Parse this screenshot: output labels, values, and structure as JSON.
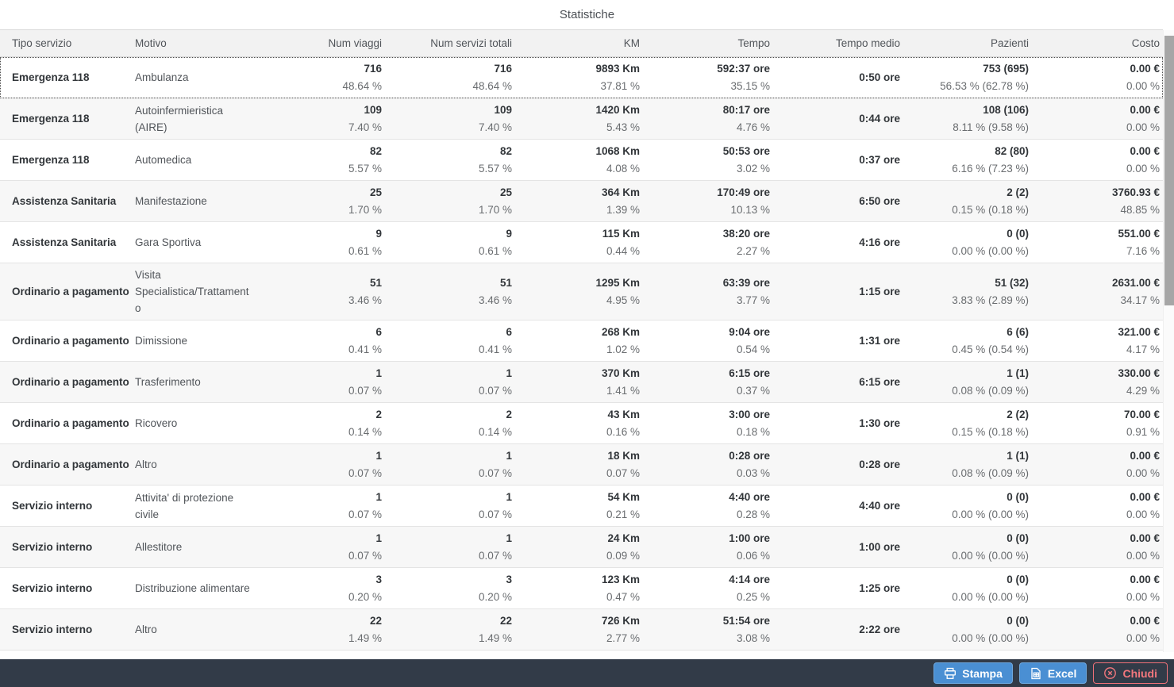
{
  "title": "Statistiche",
  "table": {
    "columns": [
      {
        "key": "tipo",
        "label": "Tipo servizio",
        "align": "left",
        "type": "tipo"
      },
      {
        "key": "motivo",
        "label": "Motivo",
        "align": "left",
        "type": "motivo"
      },
      {
        "key": "viaggi",
        "label": "Num viaggi",
        "align": "right",
        "type": "pair"
      },
      {
        "key": "servizi",
        "label": "Num servizi totali",
        "align": "right",
        "type": "pair"
      },
      {
        "key": "km",
        "label": "KM",
        "align": "right",
        "type": "pair"
      },
      {
        "key": "tempo",
        "label": "Tempo",
        "align": "right",
        "type": "pair"
      },
      {
        "key": "tempo_medio",
        "label": "Tempo medio",
        "align": "right",
        "type": "single"
      },
      {
        "key": "pazienti",
        "label": "Pazienti",
        "align": "right",
        "type": "pair"
      },
      {
        "key": "costo",
        "label": "Costo",
        "align": "right",
        "type": "pair"
      }
    ],
    "rows": [
      {
        "selected": true,
        "tipo": "Emergenza 118",
        "motivo": "Ambulanza",
        "viaggi": {
          "value": "716",
          "pct": "48.64 %"
        },
        "servizi": {
          "value": "716",
          "pct": "48.64 %"
        },
        "km": {
          "value": "9893 Km",
          "pct": "37.81 %"
        },
        "tempo": {
          "value": "592:37 ore",
          "pct": "35.15 %"
        },
        "tempo_medio": "0:50 ore",
        "pazienti": {
          "value": "753 (695)",
          "pct": "56.53 % (62.78 %)"
        },
        "costo": {
          "value": "0.00 €",
          "pct": "0.00 %"
        }
      },
      {
        "tipo": "Emergenza 118",
        "motivo": "Autoinfermieristica (AIRE)",
        "viaggi": {
          "value": "109",
          "pct": "7.40 %"
        },
        "servizi": {
          "value": "109",
          "pct": "7.40 %"
        },
        "km": {
          "value": "1420 Km",
          "pct": "5.43 %"
        },
        "tempo": {
          "value": "80:17 ore",
          "pct": "4.76 %"
        },
        "tempo_medio": "0:44 ore",
        "pazienti": {
          "value": "108 (106)",
          "pct": "8.11 % (9.58 %)"
        },
        "costo": {
          "value": "0.00 €",
          "pct": "0.00 %"
        }
      },
      {
        "tipo": "Emergenza 118",
        "motivo": "Automedica",
        "viaggi": {
          "value": "82",
          "pct": "5.57 %"
        },
        "servizi": {
          "value": "82",
          "pct": "5.57 %"
        },
        "km": {
          "value": "1068 Km",
          "pct": "4.08 %"
        },
        "tempo": {
          "value": "50:53 ore",
          "pct": "3.02 %"
        },
        "tempo_medio": "0:37 ore",
        "pazienti": {
          "value": "82 (80)",
          "pct": "6.16 % (7.23 %)"
        },
        "costo": {
          "value": "0.00 €",
          "pct": "0.00 %"
        }
      },
      {
        "tipo": "Assistenza Sanitaria",
        "motivo": "Manifestazione",
        "viaggi": {
          "value": "25",
          "pct": "1.70 %"
        },
        "servizi": {
          "value": "25",
          "pct": "1.70 %"
        },
        "km": {
          "value": "364 Km",
          "pct": "1.39 %"
        },
        "tempo": {
          "value": "170:49 ore",
          "pct": "10.13 %"
        },
        "tempo_medio": "6:50 ore",
        "pazienti": {
          "value": "2 (2)",
          "pct": "0.15 % (0.18 %)"
        },
        "costo": {
          "value": "3760.93 €",
          "pct": "48.85 %"
        }
      },
      {
        "tipo": "Assistenza Sanitaria",
        "motivo": "Gara Sportiva",
        "viaggi": {
          "value": "9",
          "pct": "0.61 %"
        },
        "servizi": {
          "value": "9",
          "pct": "0.61 %"
        },
        "km": {
          "value": "115 Km",
          "pct": "0.44 %"
        },
        "tempo": {
          "value": "38:20 ore",
          "pct": "2.27 %"
        },
        "tempo_medio": "4:16 ore",
        "pazienti": {
          "value": "0 (0)",
          "pct": "0.00 % (0.00 %)"
        },
        "costo": {
          "value": "551.00 €",
          "pct": "7.16 %"
        }
      },
      {
        "tipo": "Ordinario a pagamento",
        "motivo": "Visita Specialistica/Trattamento",
        "viaggi": {
          "value": "51",
          "pct": "3.46 %"
        },
        "servizi": {
          "value": "51",
          "pct": "3.46 %"
        },
        "km": {
          "value": "1295 Km",
          "pct": "4.95 %"
        },
        "tempo": {
          "value": "63:39 ore",
          "pct": "3.77 %"
        },
        "tempo_medio": "1:15 ore",
        "pazienti": {
          "value": "51 (32)",
          "pct": "3.83 % (2.89 %)"
        },
        "costo": {
          "value": "2631.00 €",
          "pct": "34.17 %"
        }
      },
      {
        "tipo": "Ordinario a pagamento",
        "motivo": "Dimissione",
        "viaggi": {
          "value": "6",
          "pct": "0.41 %"
        },
        "servizi": {
          "value": "6",
          "pct": "0.41 %"
        },
        "km": {
          "value": "268 Km",
          "pct": "1.02 %"
        },
        "tempo": {
          "value": "9:04 ore",
          "pct": "0.54 %"
        },
        "tempo_medio": "1:31 ore",
        "pazienti": {
          "value": "6 (6)",
          "pct": "0.45 % (0.54 %)"
        },
        "costo": {
          "value": "321.00 €",
          "pct": "4.17 %"
        }
      },
      {
        "tipo": "Ordinario a pagamento",
        "motivo": "Trasferimento",
        "viaggi": {
          "value": "1",
          "pct": "0.07 %"
        },
        "servizi": {
          "value": "1",
          "pct": "0.07 %"
        },
        "km": {
          "value": "370 Km",
          "pct": "1.41 %"
        },
        "tempo": {
          "value": "6:15 ore",
          "pct": "0.37 %"
        },
        "tempo_medio": "6:15 ore",
        "pazienti": {
          "value": "1 (1)",
          "pct": "0.08 % (0.09 %)"
        },
        "costo": {
          "value": "330.00 €",
          "pct": "4.29 %"
        }
      },
      {
        "tipo": "Ordinario a pagamento",
        "motivo": "Ricovero",
        "viaggi": {
          "value": "2",
          "pct": "0.14 %"
        },
        "servizi": {
          "value": "2",
          "pct": "0.14 %"
        },
        "km": {
          "value": "43 Km",
          "pct": "0.16 %"
        },
        "tempo": {
          "value": "3:00 ore",
          "pct": "0.18 %"
        },
        "tempo_medio": "1:30 ore",
        "pazienti": {
          "value": "2 (2)",
          "pct": "0.15 % (0.18 %)"
        },
        "costo": {
          "value": "70.00 €",
          "pct": "0.91 %"
        }
      },
      {
        "tipo": "Ordinario a pagamento",
        "motivo": "Altro",
        "viaggi": {
          "value": "1",
          "pct": "0.07 %"
        },
        "servizi": {
          "value": "1",
          "pct": "0.07 %"
        },
        "km": {
          "value": "18 Km",
          "pct": "0.07 %"
        },
        "tempo": {
          "value": "0:28 ore",
          "pct": "0.03 %"
        },
        "tempo_medio": "0:28 ore",
        "pazienti": {
          "value": "1 (1)",
          "pct": "0.08 % (0.09 %)"
        },
        "costo": {
          "value": "0.00 €",
          "pct": "0.00 %"
        }
      },
      {
        "tipo": "Servizio interno",
        "motivo": "Attivita' di protezione civile",
        "viaggi": {
          "value": "1",
          "pct": "0.07 %"
        },
        "servizi": {
          "value": "1",
          "pct": "0.07 %"
        },
        "km": {
          "value": "54 Km",
          "pct": "0.21 %"
        },
        "tempo": {
          "value": "4:40 ore",
          "pct": "0.28 %"
        },
        "tempo_medio": "4:40 ore",
        "pazienti": {
          "value": "0 (0)",
          "pct": "0.00 % (0.00 %)"
        },
        "costo": {
          "value": "0.00 €",
          "pct": "0.00 %"
        }
      },
      {
        "tipo": "Servizio interno",
        "motivo": "Allestitore",
        "viaggi": {
          "value": "1",
          "pct": "0.07 %"
        },
        "servizi": {
          "value": "1",
          "pct": "0.07 %"
        },
        "km": {
          "value": "24 Km",
          "pct": "0.09 %"
        },
        "tempo": {
          "value": "1:00 ore",
          "pct": "0.06 %"
        },
        "tempo_medio": "1:00 ore",
        "pazienti": {
          "value": "0 (0)",
          "pct": "0.00 % (0.00 %)"
        },
        "costo": {
          "value": "0.00 €",
          "pct": "0.00 %"
        }
      },
      {
        "tipo": "Servizio interno",
        "motivo": "Distribuzione alimentare",
        "viaggi": {
          "value": "3",
          "pct": "0.20 %"
        },
        "servizi": {
          "value": "3",
          "pct": "0.20 %"
        },
        "km": {
          "value": "123 Km",
          "pct": "0.47 %"
        },
        "tempo": {
          "value": "4:14 ore",
          "pct": "0.25 %"
        },
        "tempo_medio": "1:25 ore",
        "pazienti": {
          "value": "0 (0)",
          "pct": "0.00 % (0.00 %)"
        },
        "costo": {
          "value": "0.00 €",
          "pct": "0.00 %"
        }
      },
      {
        "tipo": "Servizio interno",
        "motivo": "Altro",
        "viaggi": {
          "value": "22",
          "pct": "1.49 %"
        },
        "servizi": {
          "value": "22",
          "pct": "1.49 %"
        },
        "km": {
          "value": "726 Km",
          "pct": "2.77 %"
        },
        "tempo": {
          "value": "51:54 ore",
          "pct": "3.08 %"
        },
        "tempo_medio": "2:22 ore",
        "pazienti": {
          "value": "0 (0)",
          "pct": "0.00 % (0.00 %)"
        },
        "costo": {
          "value": "0.00 €",
          "pct": "0.00 %"
        }
      }
    ]
  },
  "footer": {
    "buttons": [
      {
        "label": "Stampa",
        "icon": "printer-icon",
        "style": "primary"
      },
      {
        "label": "Excel",
        "icon": "excel-icon",
        "style": "primary"
      },
      {
        "label": "Chiudi",
        "icon": "close-circle-icon",
        "style": "danger"
      }
    ]
  },
  "colors": {
    "accent_blue": "#4a8fd3",
    "danger_red": "#ee7078",
    "footer_bg": "#323b48",
    "header_bg": "#f2f2f2",
    "alt_row_bg": "#f7f7f7",
    "value_text": "#32363a",
    "secondary_text": "#6a6d70"
  }
}
